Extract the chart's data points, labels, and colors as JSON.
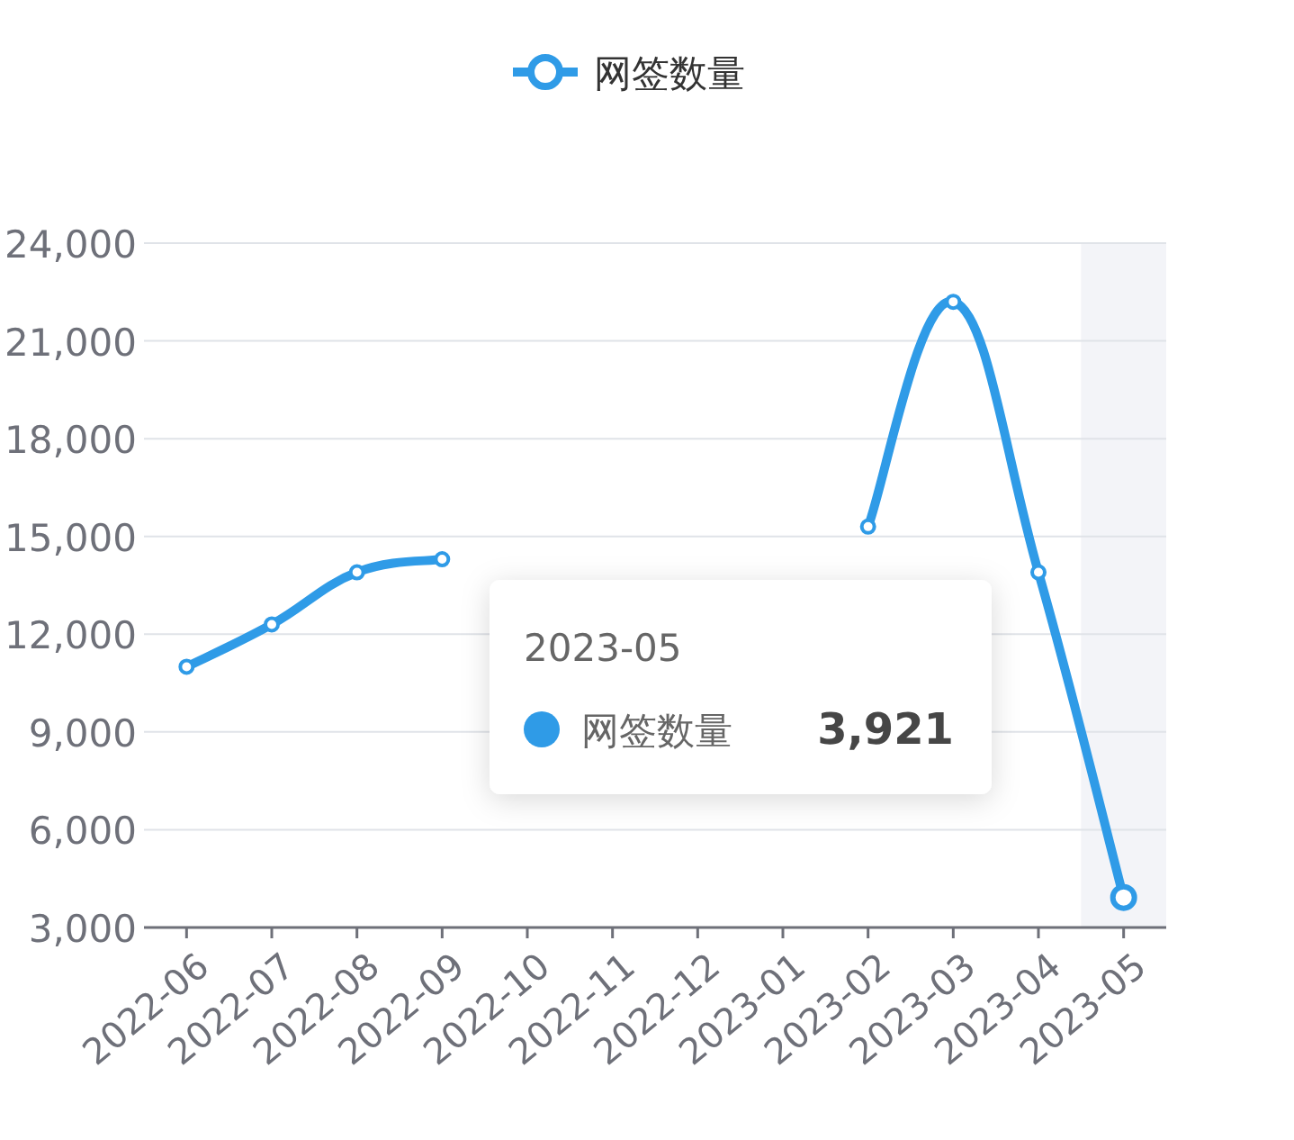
{
  "chart_data": {
    "type": "line",
    "categories": [
      "2022-06",
      "2022-07",
      "2022-08",
      "2022-09",
      "2022-10",
      "2022-11",
      "2022-12",
      "2023-01",
      "2023-02",
      "2023-03",
      "2023-04",
      "2023-05"
    ],
    "series": [
      {
        "name": "网签数量",
        "color": "#2f9be7",
        "values": [
          11000,
          12300,
          13900,
          14300,
          null,
          null,
          null,
          null,
          15300,
          22200,
          13900,
          3921
        ]
      }
    ],
    "annotations": [
      "2023-05",
      "网签数量",
      "3,921"
    ],
    "ylim": [
      3000,
      24000
    ],
    "yticks": [
      {
        "value": 3000,
        "label": "3,000"
      },
      {
        "value": 6000,
        "label": "6,000"
      },
      {
        "value": 9000,
        "label": "9,000"
      },
      {
        "value": 12000,
        "label": "12,000"
      },
      {
        "value": 15000,
        "label": "15,000"
      },
      {
        "value": 18000,
        "label": "18,000"
      },
      {
        "value": 21000,
        "label": "21,000"
      },
      {
        "value": 24000,
        "label": "24,000"
      }
    ],
    "grid": "y",
    "legend": "top",
    "marker": "circle",
    "line_style": "solid",
    "bands": [
      {
        "axis": "x",
        "from": "2023-05",
        "to": "2023-05",
        "color": "#f3f4f8"
      }
    ]
  }
}
